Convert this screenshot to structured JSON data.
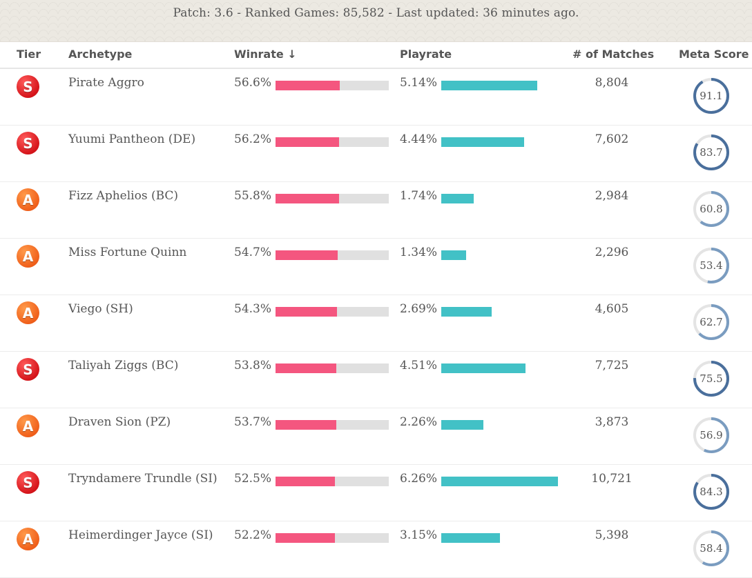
{
  "header": {
    "summary": "Patch: 3.6 - Ranked Games: 85,582 - Last updated: 36 minutes ago."
  },
  "table": {
    "columns": {
      "tier": "Tier",
      "archetype": "Archetype",
      "winrate": "Winrate ↓",
      "playrate": "Playrate",
      "matches": "# of Matches",
      "meta_score": "Meta Score"
    },
    "colors": {
      "winrate_bar": "#f4567f",
      "winrate_track": "#e0e0e0",
      "playrate_bar": "#42c1c6",
      "meta_ring_strong": "#4a6f9c",
      "meta_ring_weak": "#7a9cc0",
      "meta_ring_track": "#e4e4e4",
      "tier_s": "#d6151b",
      "tier_a": "#f0601b"
    },
    "rows": [
      {
        "tier": "S",
        "archetype": "Pirate Aggro",
        "winrate": "56.6%",
        "winrate_value": 56.6,
        "playrate": "5.14%",
        "playrate_value": 5.14,
        "matches": "8,804",
        "meta_score": "91.1",
        "meta_value": 91.1
      },
      {
        "tier": "S",
        "archetype": "Yuumi Pantheon (DE)",
        "winrate": "56.2%",
        "winrate_value": 56.2,
        "playrate": "4.44%",
        "playrate_value": 4.44,
        "matches": "7,602",
        "meta_score": "83.7",
        "meta_value": 83.7
      },
      {
        "tier": "A",
        "archetype": "Fizz Aphelios (BC)",
        "winrate": "55.8%",
        "winrate_value": 55.8,
        "playrate": "1.74%",
        "playrate_value": 1.74,
        "matches": "2,984",
        "meta_score": "60.8",
        "meta_value": 60.8
      },
      {
        "tier": "A",
        "archetype": "Miss Fortune Quinn",
        "winrate": "54.7%",
        "winrate_value": 54.7,
        "playrate": "1.34%",
        "playrate_value": 1.34,
        "matches": "2,296",
        "meta_score": "53.4",
        "meta_value": 53.4
      },
      {
        "tier": "A",
        "archetype": "Viego (SH)",
        "winrate": "54.3%",
        "winrate_value": 54.3,
        "playrate": "2.69%",
        "playrate_value": 2.69,
        "matches": "4,605",
        "meta_score": "62.7",
        "meta_value": 62.7
      },
      {
        "tier": "S",
        "archetype": "Taliyah Ziggs (BC)",
        "winrate": "53.8%",
        "winrate_value": 53.8,
        "playrate": "4.51%",
        "playrate_value": 4.51,
        "matches": "7,725",
        "meta_score": "75.5",
        "meta_value": 75.5
      },
      {
        "tier": "A",
        "archetype": "Draven Sion (PZ)",
        "winrate": "53.7%",
        "winrate_value": 53.7,
        "playrate": "2.26%",
        "playrate_value": 2.26,
        "matches": "3,873",
        "meta_score": "56.9",
        "meta_value": 56.9
      },
      {
        "tier": "S",
        "archetype": "Tryndamere Trundle (SI)",
        "winrate": "52.5%",
        "winrate_value": 52.5,
        "playrate": "6.26%",
        "playrate_value": 6.26,
        "matches": "10,721",
        "meta_score": "84.3",
        "meta_value": 84.3
      },
      {
        "tier": "A",
        "archetype": "Heimerdinger Jayce (SI)",
        "winrate": "52.2%",
        "winrate_value": 52.2,
        "playrate": "3.15%",
        "playrate_value": 3.15,
        "matches": "5,398",
        "meta_score": "58.4",
        "meta_value": 58.4
      }
    ]
  }
}
